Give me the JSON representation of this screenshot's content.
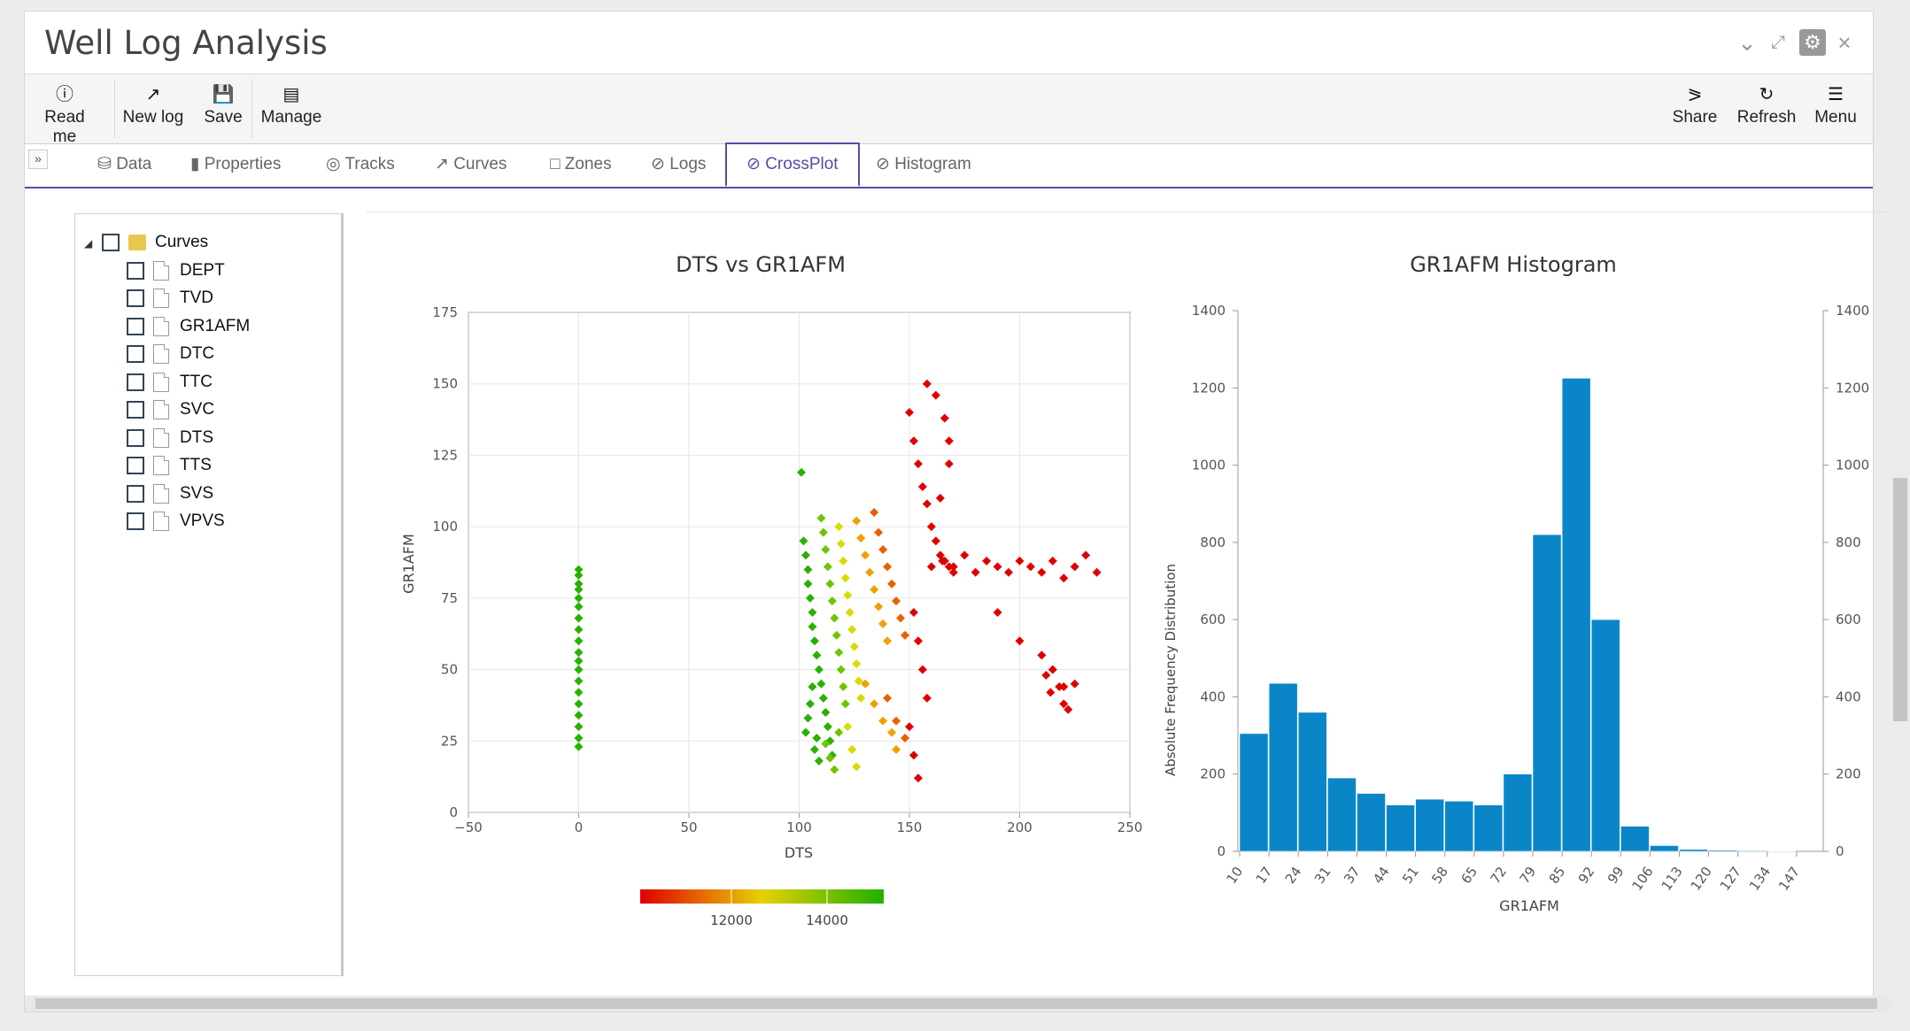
{
  "window": {
    "title": "Well Log Analysis"
  },
  "toolbar": {
    "left": [
      {
        "label": "Read me",
        "icon": "info-icon"
      },
      {
        "label": "New log",
        "icon": "line-chart-icon"
      },
      {
        "label": "Save",
        "icon": "save-icon"
      },
      {
        "label": "Manage",
        "icon": "list-icon"
      }
    ],
    "right": [
      {
        "label": "Share",
        "icon": "share-icon"
      },
      {
        "label": "Refresh",
        "icon": "refresh-icon"
      },
      {
        "label": "Menu",
        "icon": "menu-icon"
      }
    ]
  },
  "tabs": [
    {
      "label": "Data",
      "icon": "database-icon"
    },
    {
      "label": "Properties",
      "icon": "book-icon"
    },
    {
      "label": "Tracks",
      "icon": "target-icon"
    },
    {
      "label": "Curves",
      "icon": "area-chart-icon"
    },
    {
      "label": "Zones",
      "icon": "file-icon"
    },
    {
      "label": "Logs",
      "icon": "ban-icon"
    },
    {
      "label": "CrossPlot",
      "icon": "ban-icon",
      "active": true
    },
    {
      "label": "Histogram",
      "icon": "ban-icon"
    }
  ],
  "tree": {
    "root": "Curves",
    "items": [
      "DEPT",
      "TVD",
      "GR1AFM",
      "DTC",
      "TTC",
      "SVC",
      "DTS",
      "TTS",
      "SVS",
      "VPVS"
    ]
  },
  "chart_data": [
    {
      "type": "scatter",
      "title": "DTS vs GR1AFM",
      "xlabel": "DTS",
      "ylabel": "GR1AFM",
      "xlim": [
        -50,
        250
      ],
      "ylim": [
        0,
        175
      ],
      "xticks": [
        -50,
        0,
        50,
        100,
        150,
        200,
        250
      ],
      "yticks": [
        0,
        25,
        50,
        75,
        100,
        125,
        150,
        175
      ],
      "grid": true,
      "color_scale": {
        "colors": [
          "#e00000",
          "#e8d000",
          "#1fb000"
        ],
        "tick_labels": [
          "12000",
          "14000"
        ]
      },
      "series": [
        {
          "color": "#2ab000",
          "x": [
            0,
            0,
            0,
            0,
            0,
            0,
            0,
            0,
            0,
            0,
            0,
            0,
            0,
            0,
            0,
            0,
            0,
            0,
            0
          ],
          "y": [
            85,
            83,
            80,
            78,
            75,
            72,
            68,
            64,
            60,
            56,
            53,
            50,
            46,
            42,
            38,
            34,
            30,
            26,
            23
          ]
        },
        {
          "color": "#2ab000",
          "x": [
            101,
            102,
            103,
            104,
            104,
            105,
            106,
            106,
            107,
            108,
            109,
            110,
            111,
            112,
            113,
            114,
            115,
            103,
            104,
            105,
            106,
            107,
            108,
            109
          ],
          "y": [
            119,
            95,
            90,
            85,
            80,
            75,
            70,
            65,
            60,
            55,
            50,
            45,
            40,
            35,
            30,
            25,
            20,
            28,
            33,
            38,
            44,
            22,
            26,
            18
          ]
        },
        {
          "color": "#6fc400",
          "x": [
            110,
            111,
            112,
            113,
            114,
            115,
            116,
            117,
            118,
            119,
            120,
            121,
            112,
            114,
            116,
            118
          ],
          "y": [
            103,
            98,
            92,
            86,
            80,
            74,
            68,
            62,
            56,
            50,
            44,
            38,
            24,
            19,
            15,
            28
          ]
        },
        {
          "color": "#d6dc00",
          "x": [
            118,
            119,
            120,
            121,
            122,
            123,
            124,
            125,
            126,
            127,
            128,
            122,
            124,
            126
          ],
          "y": [
            100,
            94,
            88,
            82,
            76,
            70,
            64,
            58,
            52,
            46,
            40,
            30,
            22,
            16
          ]
        },
        {
          "color": "#f0a000",
          "x": [
            126,
            128,
            130,
            132,
            134,
            136,
            138,
            140,
            130,
            134,
            138,
            142,
            144
          ],
          "y": [
            102,
            96,
            90,
            84,
            78,
            72,
            66,
            60,
            45,
            38,
            32,
            28,
            22
          ]
        },
        {
          "color": "#e86000",
          "x": [
            134,
            136,
            138,
            140,
            142,
            144,
            146,
            148,
            140,
            144,
            148
          ],
          "y": [
            105,
            98,
            92,
            86,
            80,
            74,
            68,
            62,
            40,
            32,
            26
          ]
        },
        {
          "color": "#e00000",
          "x": [
            150,
            152,
            154,
            156,
            158,
            160,
            162,
            164,
            166,
            168,
            170,
            152,
            154,
            156,
            158,
            150,
            152,
            154,
            160,
            165,
            170,
            175,
            180,
            185,
            190,
            195,
            200,
            205,
            210,
            215,
            220,
            225,
            230,
            235,
            190,
            200,
            210,
            215,
            220,
            225,
            214,
            220,
            222,
            218,
            212,
            158,
            162,
            166,
            168,
            168,
            164
          ],
          "y": [
            140,
            130,
            122,
            114,
            108,
            100,
            95,
            90,
            88,
            86,
            84,
            70,
            60,
            50,
            40,
            30,
            20,
            12,
            86,
            88,
            86,
            90,
            84,
            88,
            86,
            84,
            88,
            86,
            84,
            88,
            82,
            86,
            90,
            84,
            70,
            60,
            55,
            50,
            44,
            45,
            42,
            38,
            36,
            44,
            48,
            150,
            146,
            138,
            130,
            122,
            110
          ]
        }
      ]
    },
    {
      "type": "bar",
      "title": "GR1AFM Histogram",
      "xlabel": "GR1AFM",
      "ylabel": "Absolute Frequency Distribution",
      "ylim": [
        0,
        1400
      ],
      "yticks": [
        0,
        200,
        400,
        600,
        800,
        1000,
        1200,
        1400
      ],
      "categories": [
        "10",
        "17",
        "24",
        "31",
        "37",
        "44",
        "51",
        "58",
        "65",
        "72",
        "79",
        "85",
        "92",
        "99",
        "106",
        "113",
        "120",
        "127",
        "134",
        "147"
      ],
      "values": [
        305,
        435,
        360,
        190,
        150,
        120,
        135,
        130,
        120,
        200,
        820,
        1225,
        600,
        65,
        15,
        5,
        3,
        2,
        1,
        0
      ],
      "color": "#0a86c8"
    }
  ]
}
